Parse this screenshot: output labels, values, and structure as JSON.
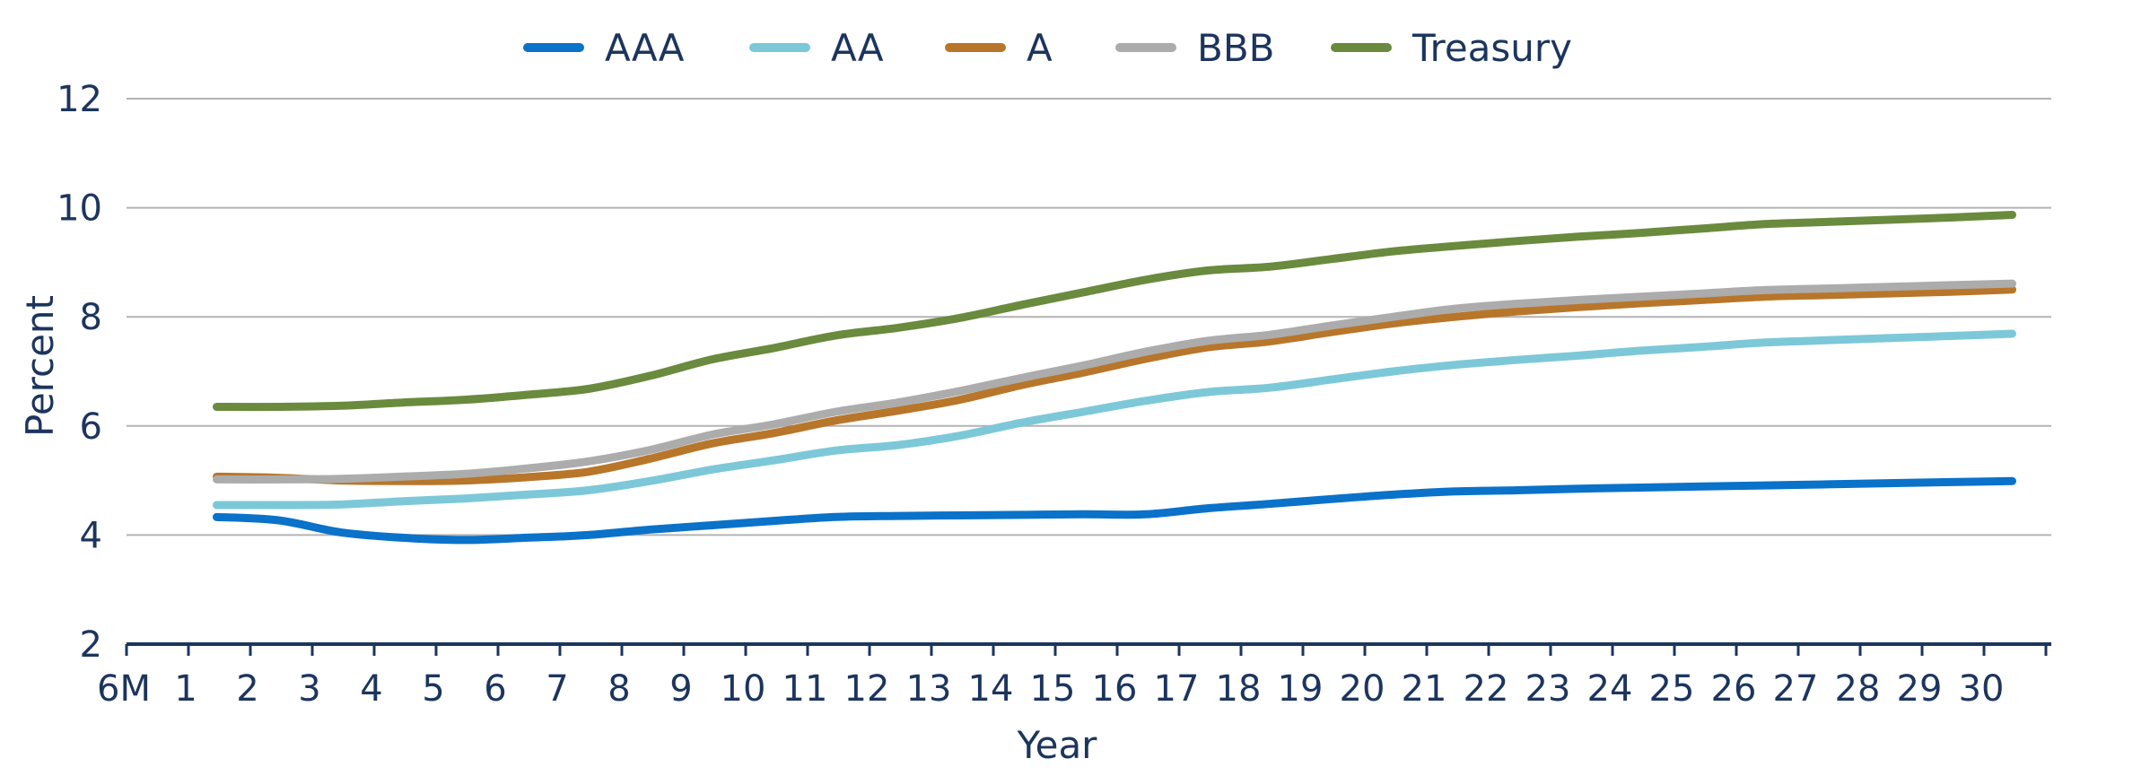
{
  "chart_data": {
    "type": "line",
    "xlabel": "Year",
    "ylabel": "Percent",
    "ylim": [
      2,
      12
    ],
    "yticks": [
      2,
      4,
      6,
      8,
      10,
      12
    ],
    "categories": [
      "6M",
      "1",
      "2",
      "3",
      "4",
      "5",
      "6",
      "7",
      "8",
      "9",
      "10",
      "11",
      "12",
      "13",
      "14",
      "15",
      "16",
      "17",
      "18",
      "19",
      "20",
      "21",
      "22",
      "23",
      "24",
      "25",
      "26",
      "27",
      "28",
      "29",
      "30"
    ],
    "grid": "horizontal",
    "legend_position": "top",
    "series": [
      {
        "name": "AAA",
        "color": "#0a72c9",
        "x": [
          1.5,
          2.5,
          3.5,
          4.5,
          5.5,
          6.5,
          7.5,
          8.5,
          9.5,
          10.5,
          11.5,
          12.5,
          13.5,
          14.5,
          15.5,
          16.5,
          17.5,
          18.5,
          19.5,
          20.5,
          21.5,
          22.5,
          23.5,
          24.5,
          25.5,
          26.5,
          27.5,
          28.5,
          29.5,
          30.5
        ],
        "values": [
          4.33,
          4.27,
          4.05,
          3.95,
          3.91,
          3.95,
          4.0,
          4.1,
          4.18,
          4.26,
          4.33,
          4.35,
          4.36,
          4.37,
          4.38,
          4.38,
          4.49,
          4.57,
          4.66,
          4.74,
          4.8,
          4.82,
          4.85,
          4.87,
          4.89,
          4.91,
          4.93,
          4.95,
          4.97,
          4.99
        ]
      },
      {
        "name": "AA",
        "color": "#7dc8d8",
        "x": [
          1.5,
          2.5,
          3.5,
          4.5,
          5.5,
          6.5,
          7.5,
          8.5,
          9.5,
          10.5,
          11.5,
          12.5,
          13.5,
          14.5,
          15.5,
          16.5,
          17.5,
          18.5,
          19.5,
          20.5,
          21.5,
          22.5,
          23.5,
          24.5,
          25.5,
          26.5,
          27.5,
          28.5,
          29.5,
          30.5
        ],
        "values": [
          4.55,
          4.55,
          4.56,
          4.62,
          4.67,
          4.74,
          4.82,
          4.99,
          5.2,
          5.37,
          5.55,
          5.65,
          5.82,
          6.06,
          6.26,
          6.46,
          6.62,
          6.7,
          6.85,
          7.0,
          7.12,
          7.21,
          7.29,
          7.38,
          7.45,
          7.53,
          7.57,
          7.61,
          7.65,
          7.69
        ]
      },
      {
        "name": "A",
        "color": "#b8762a",
        "x": [
          1.5,
          2.5,
          3.5,
          4.5,
          5.5,
          6.5,
          7.5,
          8.5,
          9.5,
          10.5,
          11.5,
          12.5,
          13.5,
          14.5,
          15.5,
          16.5,
          17.5,
          18.5,
          19.5,
          20.5,
          21.5,
          22.5,
          23.5,
          24.5,
          25.5,
          26.5,
          27.5,
          28.5,
          29.5,
          30.5
        ],
        "values": [
          5.07,
          5.05,
          5.0,
          4.99,
          5.0,
          5.06,
          5.16,
          5.4,
          5.68,
          5.87,
          6.1,
          6.28,
          6.48,
          6.75,
          6.98,
          7.23,
          7.44,
          7.55,
          7.72,
          7.88,
          8.0,
          8.1,
          8.18,
          8.25,
          8.31,
          8.37,
          8.4,
          8.43,
          8.46,
          8.5
        ]
      },
      {
        "name": "BBB",
        "color": "#acacac",
        "x": [
          1.5,
          2.5,
          3.5,
          4.5,
          5.5,
          6.5,
          7.5,
          8.5,
          9.5,
          10.5,
          11.5,
          12.5,
          13.5,
          14.5,
          15.5,
          16.5,
          17.5,
          18.5,
          19.5,
          20.5,
          21.5,
          22.5,
          23.5,
          24.5,
          25.5,
          26.5,
          27.5,
          28.5,
          29.5,
          30.5
        ],
        "values": [
          5.02,
          5.02,
          5.03,
          5.07,
          5.12,
          5.22,
          5.35,
          5.56,
          5.84,
          6.03,
          6.26,
          6.43,
          6.64,
          6.88,
          7.11,
          7.36,
          7.56,
          7.67,
          7.84,
          8.0,
          8.15,
          8.24,
          8.31,
          8.37,
          8.43,
          8.49,
          8.52,
          8.55,
          8.58,
          8.61
        ]
      },
      {
        "name": "Treasury",
        "color": "#6a8a3e",
        "x": [
          1.5,
          2.5,
          3.5,
          4.5,
          5.5,
          6.5,
          7.5,
          8.5,
          9.5,
          10.5,
          11.5,
          12.5,
          13.5,
          14.5,
          15.5,
          16.5,
          17.5,
          18.5,
          19.5,
          20.5,
          21.5,
          22.5,
          23.5,
          24.5,
          25.5,
          26.5,
          27.5,
          28.5,
          29.5,
          30.5
        ],
        "values": [
          6.35,
          6.35,
          6.37,
          6.43,
          6.48,
          6.57,
          6.68,
          6.92,
          7.22,
          7.43,
          7.66,
          7.8,
          7.98,
          8.22,
          8.45,
          8.68,
          8.85,
          8.92,
          9.06,
          9.2,
          9.3,
          9.39,
          9.47,
          9.54,
          9.62,
          9.7,
          9.74,
          9.78,
          9.82,
          9.87
        ]
      }
    ]
  },
  "colors": {
    "axis": "#1c355e",
    "text": "#1c355e",
    "grid": "#b3b3b3"
  }
}
